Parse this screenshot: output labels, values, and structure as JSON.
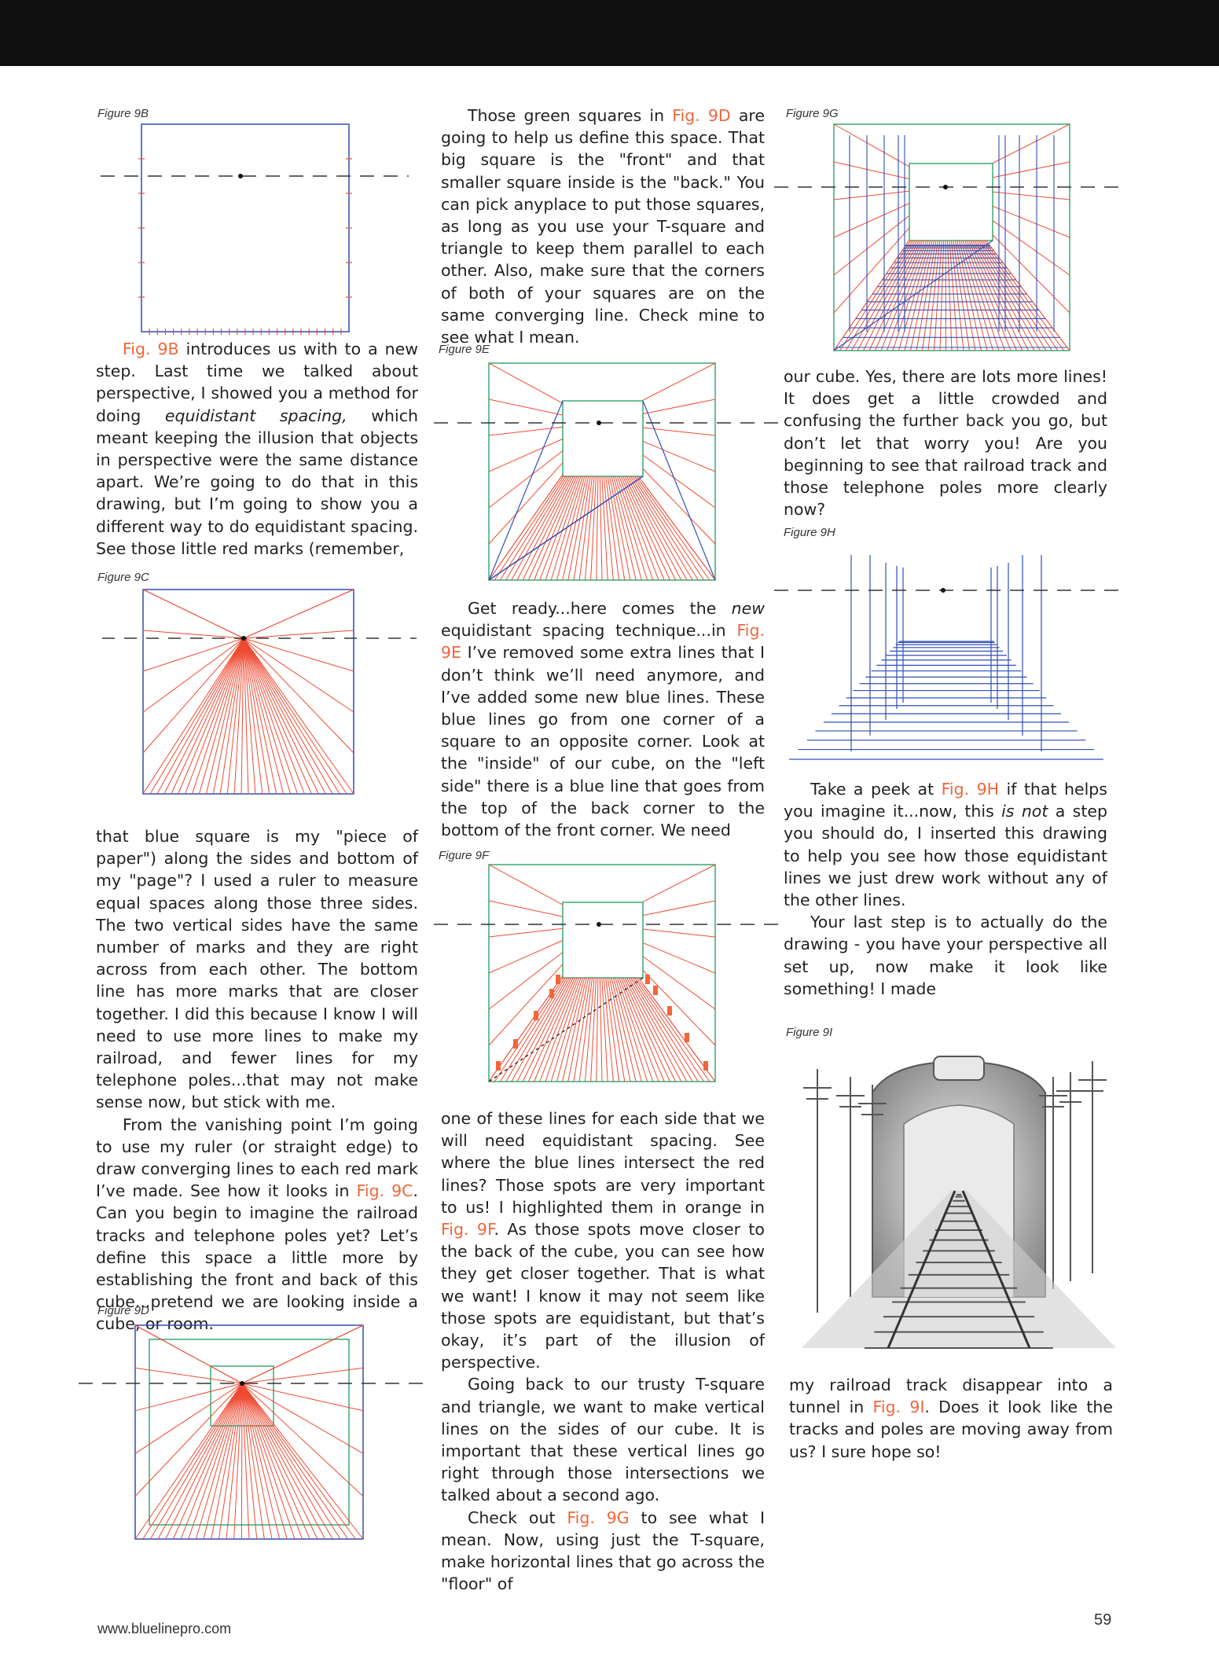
{
  "header": {},
  "captions": {
    "f9b": "Figure 9B",
    "f9c": "Figure 9C",
    "f9d": "Figure 9D",
    "f9e": "Figure 9E",
    "f9f": "Figure 9F",
    "f9g": "Figure 9G",
    "f9h": "Figure 9H",
    "f9i": "Figure 9I"
  },
  "col1": {
    "a1": "Fig. 9B",
    "a2": " introduces us with to a new step. Last time we talked about perspective, I showed you a method for doing ",
    "a3": "equidistant spacing,",
    "a4": " which meant keeping the illusion that objects in perspective were the same distance apart. We’re going to do that in this drawing, but I’m going to show you a different way to do equidistant spacing. See those little red marks (remember,",
    "b1": "that blue square is my \"piece of paper\") along the sides and bottom of my \"page\"? I used a ruler to measure equal spaces along those three sides. The two vertical sides have the same number of marks and they are right across from each other. The bottom line has more marks that are closer together. I did this because I know I will need to use more lines to make my railroad, and fewer lines for my telephone poles...that may not make sense now, but stick with me.",
    "c1": "From the vanishing point I’m going to use my ruler (or straight edge) to draw converging lines to each red mark I’ve made. See how it looks in ",
    "c2": "Fig. 9C",
    "c3": ". Can you begin to imagine the railroad tracks and telephone poles yet? Let’s define this space a little more by establishing the front and back of this cube...pretend we are looking inside a cube, or room."
  },
  "col2": {
    "a1": "Those green squares in ",
    "a2": "Fig. 9D",
    "a3": " are going to help us define this space. That big square is the \"front\" and that smaller square inside is the \"back.\" You can pick anyplace to put those squares, as long as you use your T-square and triangle to keep them parallel to each other. Also, make sure that the corners of both of your squares are on the same converging line. Check mine to see what I mean.",
    "b1": "Get ready...here comes the ",
    "b2": "new",
    "b3": " equidistant spacing technique...in ",
    "b4": "Fig. 9E",
    "b5": " I’ve removed some extra lines that I don’t think we’ll need anymore, and I’ve added some new blue lines. These blue lines go from one corner of a square to an opposite corner. Look at the \"inside\" of our cube, on the \"left side\" there is a blue line that goes from the top of the back corner to the bottom of the front corner. We need",
    "c1": "one of these lines for each side that we will need equidistant spacing. See where the blue lines intersect the red lines? Those spots are very important to us! I highlighted them in orange in ",
    "c2": "Fig. 9F",
    "c3": ". As those spots move closer to the back of the cube, you can see how they get closer together. That is what we want! I know it may not seem like those spots are equidistant, but that’s okay, it’s part of the illusion of perspective.",
    "d1": "Going back to our trusty T-square and triangle, we want to make vertical lines on the sides of our cube. It is important that these vertical lines go right through those intersections we talked about a second ago.",
    "e1": "Check out ",
    "e2": "Fig. 9G",
    "e3": " to see what I mean. Now, using just the T-square, make horizontal lines that go across the \"floor\" of"
  },
  "col3": {
    "a1": "our cube. Yes, there are lots more lines! It does get a little crowded and confusing the further back you go, but don’t let that worry you! Are you beginning to see that railroad track and those telephone poles more clearly now?",
    "b1": "Take a peek at ",
    "b2": "Fig. 9H",
    "b3": " if that helps you imagine it...now, this ",
    "b4": "is not",
    "b5": " a step you should do, I inserted this drawing to help you see how those equidistant lines we just drew work without any of the other lines.",
    "c1": "Your last step is to actually do the drawing - you have your perspective all set up, now make it look like something! I made",
    "d1": "my railroad track disappear into a tunnel in ",
    "d2": "Fig. 9I",
    "d3": ". Does it look like the tracks and poles are moving away from us? I sure hope so!"
  },
  "footer": {
    "url": "www.bluelinepro.com",
    "page": "59"
  },
  "colors": {
    "red": "#ef4a32",
    "blue": "#2f4fb5",
    "green": "#3aa873",
    "orange": "#f0663b",
    "black": "#111111"
  }
}
